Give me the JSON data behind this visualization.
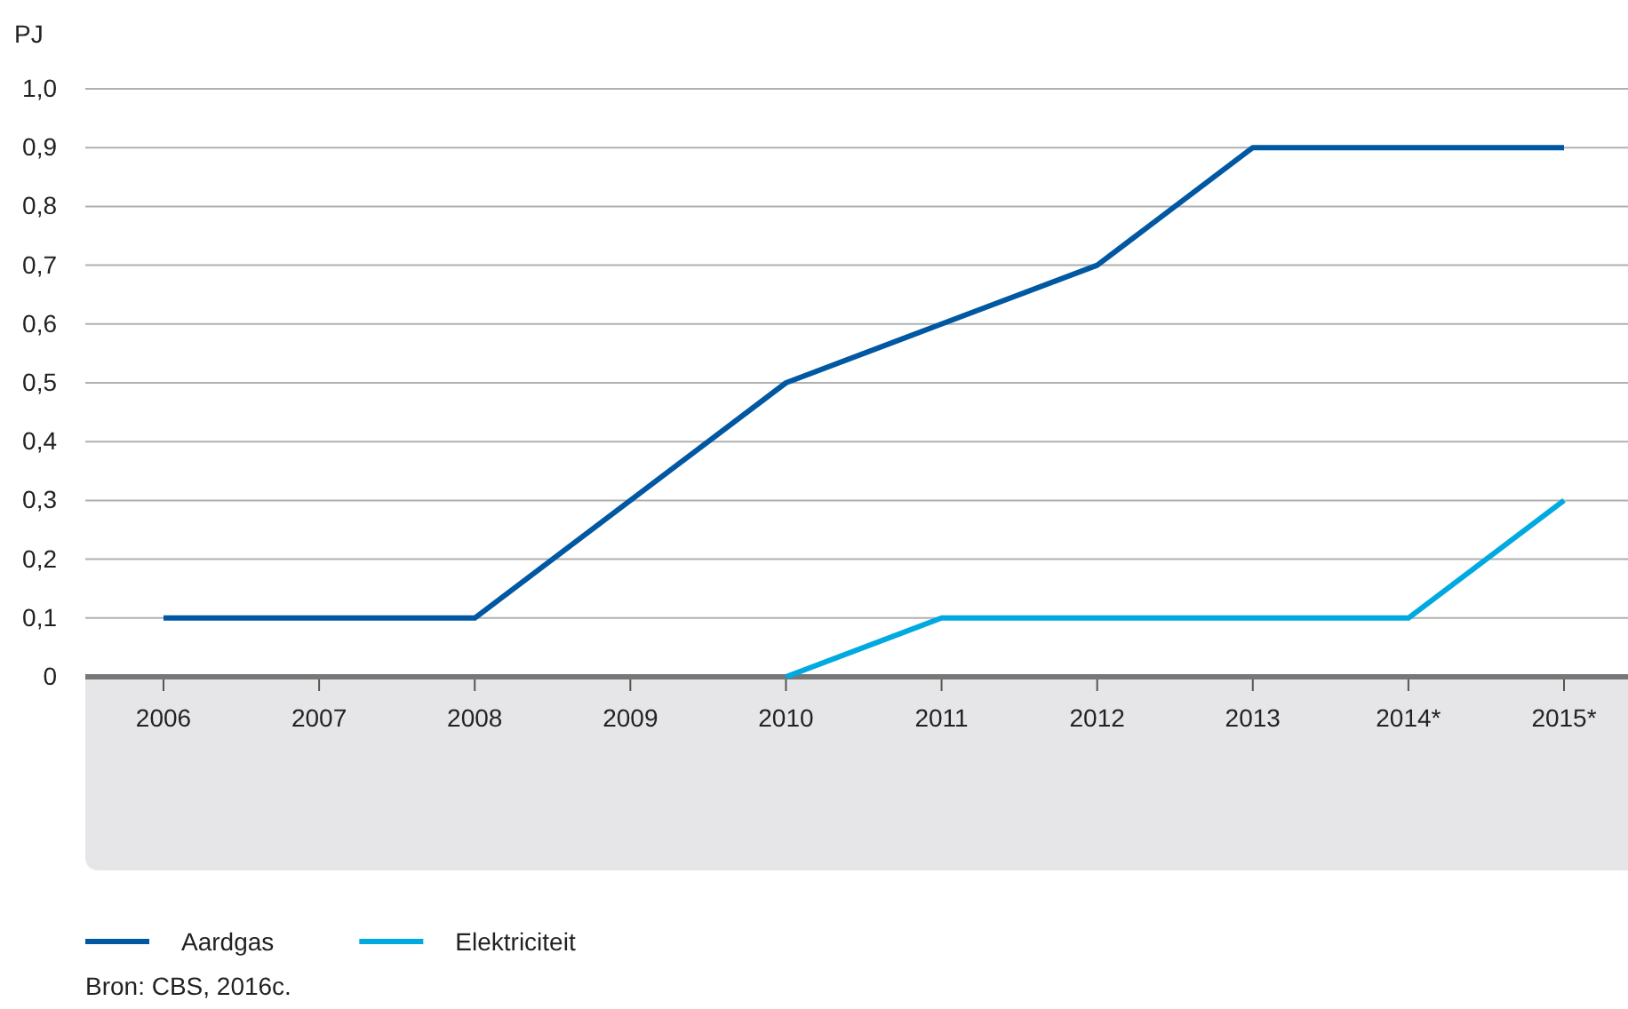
{
  "chart_data": {
    "type": "line",
    "ylabel": "PJ",
    "categories": [
      "2006",
      "2007",
      "2008",
      "2009",
      "2010",
      "2011",
      "2012",
      "2013",
      "2014*",
      "2015*"
    ],
    "series": [
      {
        "name": "Aardgas",
        "color": "#0058a3",
        "values": [
          0.1,
          0.1,
          0.1,
          0.3,
          0.5,
          0.6,
          0.7,
          0.9,
          0.9,
          0.9
        ]
      },
      {
        "name": "Elektriciteit",
        "color": "#00a9e0",
        "values": [
          null,
          null,
          null,
          null,
          0,
          0.1,
          0.1,
          0.1,
          0.1,
          0.3
        ]
      }
    ],
    "ylim": [
      0,
      1
    ],
    "yticks": [
      0,
      {
        "value": 0.1,
        "label": "0,1"
      },
      {
        "value": 0.2,
        "label": "0,2"
      },
      {
        "value": 0.3,
        "label": "0,3"
      },
      {
        "value": 0.4,
        "label": "0,4"
      },
      {
        "value": 0.5,
        "label": "0,5"
      },
      {
        "value": 0.6,
        "label": "0,6"
      },
      {
        "value": 0.7,
        "label": "0,7"
      },
      {
        "value": 0.8,
        "label": "0,8"
      },
      {
        "value": 0.9,
        "label": "0,9"
      },
      {
        "value": 1,
        "label": "1,0"
      }
    ],
    "grid": "y",
    "legend": "bottom",
    "marker": "none",
    "line_style": "solid",
    "annotations": [
      "Bron: CBS, 2016c."
    ]
  }
}
